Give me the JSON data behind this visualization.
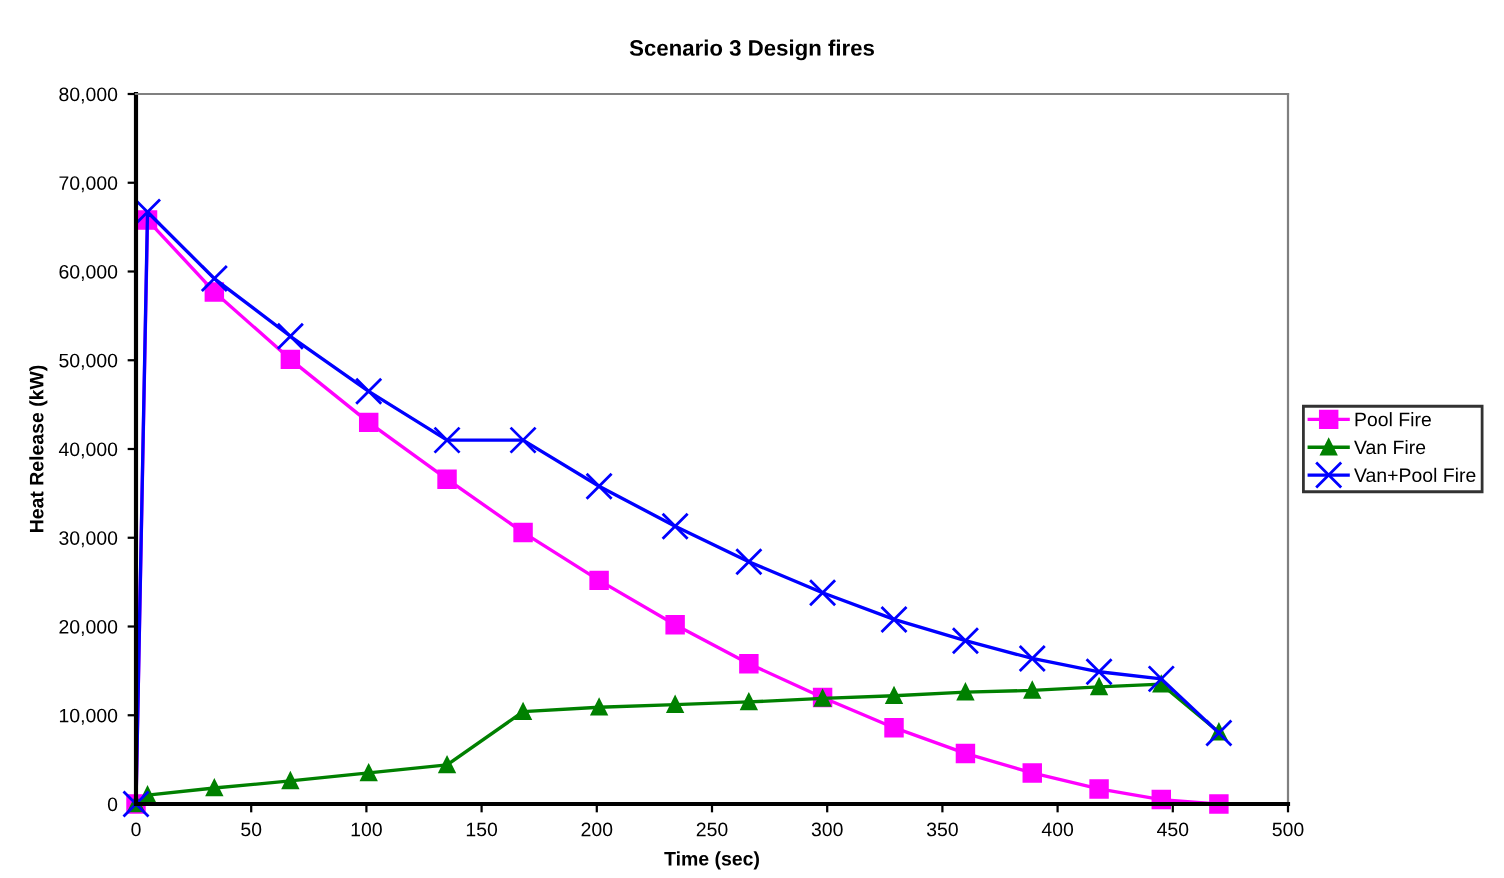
{
  "chart_data": {
    "type": "line",
    "title": "Scenario 3 Design fires",
    "xlabel": "Time (sec)",
    "ylabel": "Heat Release (kW)",
    "x": [
      0,
      5,
      34,
      67,
      101,
      135,
      168,
      201,
      234,
      266,
      298,
      329,
      360,
      389,
      418,
      445,
      470
    ],
    "series": [
      {
        "name": "Pool Fire",
        "color": "#ff00ff",
        "marker": "square",
        "values": [
          0,
          65800,
          57700,
          50100,
          43000,
          36600,
          30600,
          25200,
          20200,
          15800,
          12000,
          8600,
          5700,
          3500,
          1700,
          500,
          0
        ]
      },
      {
        "name": "Van Fire",
        "color": "#008000",
        "marker": "triangle",
        "values": [
          0,
          1000,
          1800,
          2600,
          3500,
          4400,
          10400,
          10900,
          11200,
          11500,
          11900,
          12200,
          12600,
          12800,
          13200,
          13500,
          8100
        ]
      },
      {
        "name": "Van+Pool Fire",
        "color": "#0000ff",
        "marker": "cross",
        "values": [
          0,
          66700,
          59200,
          52700,
          46500,
          41000,
          41000,
          35800,
          31300,
          27300,
          23800,
          20800,
          18400,
          16400,
          14900,
          14100,
          8000
        ]
      }
    ],
    "xlim": [
      0,
      500
    ],
    "xticks": [
      0,
      50,
      100,
      150,
      200,
      250,
      300,
      350,
      400,
      450,
      500
    ],
    "ylim": [
      0,
      80000
    ],
    "yticks": [
      {
        "value": 0,
        "label": "0"
      },
      {
        "value": 10000,
        "label": "10,000"
      },
      {
        "value": 20000,
        "label": "20,000"
      },
      {
        "value": 30000,
        "label": "30,000"
      },
      {
        "value": 40000,
        "label": "40,000"
      },
      {
        "value": 50000,
        "label": "50,000"
      },
      {
        "value": 60000,
        "label": "60,000"
      },
      {
        "value": 70000,
        "label": "70,000"
      },
      {
        "value": 80000,
        "label": "80,000"
      }
    ],
    "grid": false,
    "legend": "right",
    "line_style": "solid"
  }
}
